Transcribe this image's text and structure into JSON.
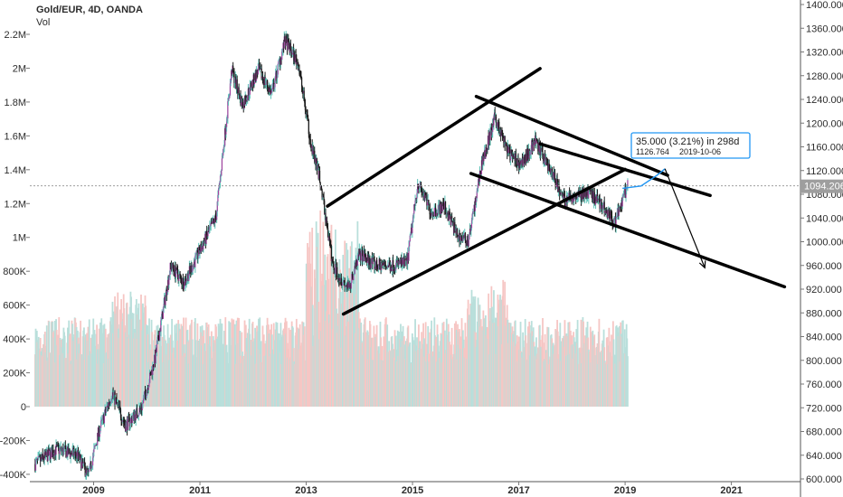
{
  "chart_data": {
    "type": "candlestick",
    "title": "Gold/EUR, 4D, OANDA",
    "volume_label": "Vol",
    "colors": {
      "up": "#a1439f",
      "down": "#1a1a1a",
      "wick_up": "#5ec3b8",
      "vol_up": "#b9dfdb",
      "vol_down": "#f6c6c4",
      "trendline": "#000000",
      "annotation": "#2196f3",
      "price_line": "#9e9e9e",
      "price_tag": "#9e9e9e"
    },
    "x_ticks": [
      "2009",
      "2011",
      "2013",
      "2015",
      "2017",
      "2019",
      "2021"
    ],
    "x_range": [
      2007.8,
      2022.3
    ],
    "price_axis": {
      "ticks": [
        "1400.000",
        "1360.000",
        "1320.000",
        "1280.000",
        "1240.000",
        "1200.000",
        "1160.000",
        "1120.000",
        "1080.000",
        "1040.000",
        "1000.000",
        "960.000",
        "920.000",
        "880.000",
        "840.000",
        "800.000",
        "760.000",
        "720.000",
        "680.000",
        "640.000",
        "600.000"
      ],
      "ylim": [
        596,
        1404
      ]
    },
    "volume_axis": {
      "ticks": [
        "2.2M",
        "2M",
        "1.8M",
        "1.6M",
        "1.4M",
        "1.2M",
        "1M",
        "800K",
        "600K",
        "400K",
        "200K",
        "0",
        "-200K",
        "-400K"
      ],
      "values": [
        2200000,
        2000000,
        1800000,
        1600000,
        1400000,
        1200000,
        1000000,
        800000,
        600000,
        400000,
        200000,
        0,
        -200000,
        -400000
      ]
    },
    "last_price": "1094.206",
    "last_price_value": 1094.206,
    "price_path": [
      [
        2007.9,
        625
      ],
      [
        2008.3,
        650
      ],
      [
        2008.7,
        640
      ],
      [
        2008.9,
        605
      ],
      [
        2009.1,
        680
      ],
      [
        2009.35,
        745
      ],
      [
        2009.6,
        690
      ],
      [
        2009.9,
        720
      ],
      [
        2010.15,
        800
      ],
      [
        2010.45,
        960
      ],
      [
        2010.7,
        930
      ],
      [
        2011.0,
        985
      ],
      [
        2011.3,
        1040
      ],
      [
        2011.6,
        1290
      ],
      [
        2011.8,
        1230
      ],
      [
        2012.1,
        1290
      ],
      [
        2012.35,
        1250
      ],
      [
        2012.6,
        1340
      ],
      [
        2012.85,
        1300
      ],
      [
        2013.1,
        1160
      ],
      [
        2013.25,
        1110
      ],
      [
        2013.5,
        960
      ],
      [
        2013.8,
        920
      ],
      [
        2014.0,
        980
      ],
      [
        2014.3,
        960
      ],
      [
        2014.6,
        960
      ],
      [
        2014.9,
        965
      ],
      [
        2015.1,
        1100
      ],
      [
        2015.35,
        1050
      ],
      [
        2015.6,
        1060
      ],
      [
        2015.85,
        1010
      ],
      [
        2016.05,
        1000
      ],
      [
        2016.3,
        1130
      ],
      [
        2016.55,
        1210
      ],
      [
        2016.8,
        1150
      ],
      [
        2017.05,
        1130
      ],
      [
        2017.3,
        1170
      ],
      [
        2017.6,
        1120
      ],
      [
        2017.85,
        1070
      ],
      [
        2018.1,
        1080
      ],
      [
        2018.35,
        1080
      ],
      [
        2018.6,
        1060
      ],
      [
        2018.8,
        1030
      ],
      [
        2018.95,
        1070
      ],
      [
        2019.05,
        1094
      ]
    ],
    "trendlines": [
      {
        "name": "channel-upper",
        "from": [
          2013.4,
          1060
        ],
        "to": [
          2017.4,
          1292
        ]
      },
      {
        "name": "channel-lower",
        "from": [
          2013.7,
          878
        ],
        "to": [
          2019.0,
          1122
        ]
      },
      {
        "name": "down-upper",
        "from": [
          2016.2,
          1245
        ],
        "to": [
          2019.8,
          1112
        ]
      },
      {
        "name": "down-mid",
        "from": [
          2017.4,
          1165
        ],
        "to": [
          2020.6,
          1078
        ]
      },
      {
        "name": "down-lower",
        "from": [
          2016.1,
          1115
        ],
        "to": [
          2022.0,
          924
        ]
      }
    ],
    "projection": {
      "path": [
        [
          2018.95,
          1090
        ],
        [
          2019.3,
          1094
        ],
        [
          2019.6,
          1112
        ],
        [
          2019.75,
          1123
        ]
      ],
      "arrow": [
        [
          2019.75,
          1123
        ],
        [
          2020.5,
          956
        ]
      ],
      "label": "35.000 (3.21%) in 298d",
      "target_price": "1126.764",
      "target_date": "2019-10-06"
    }
  }
}
